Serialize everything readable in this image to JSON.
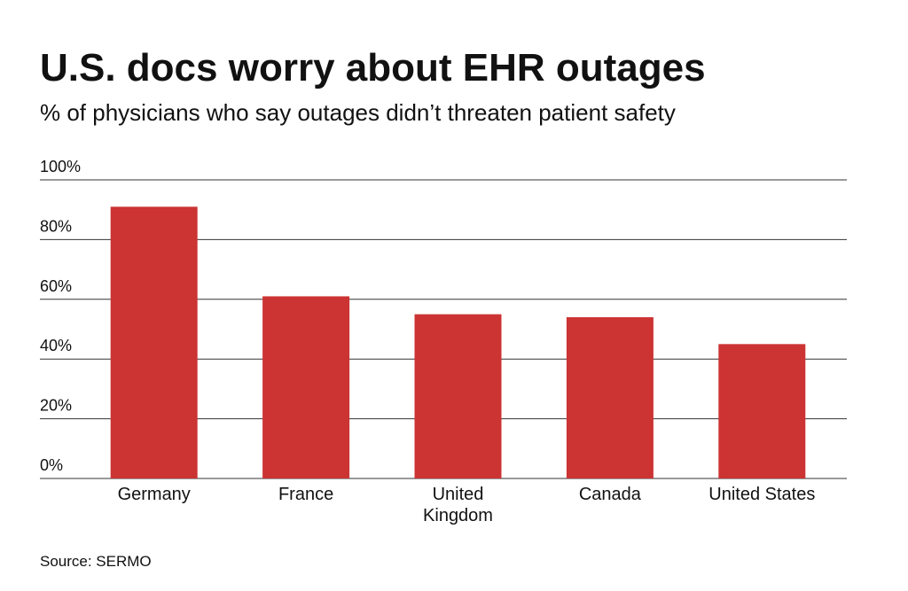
{
  "chart_data": {
    "type": "bar",
    "title": "U.S. docs worry about EHR outages",
    "subtitle": "% of physicians who say outages didn’t threaten patient safety",
    "source": "Source: SERMO",
    "categories": [
      "Germany",
      "France",
      "United\nKingdom",
      "Canada",
      "United States"
    ],
    "values": [
      91,
      61,
      55,
      54,
      45
    ],
    "color": "#cc3333",
    "ylim": [
      0,
      100
    ],
    "yticks": [
      {
        "value": 0,
        "label": "0%"
      },
      {
        "value": 20,
        "label": "20%"
      },
      {
        "value": 40,
        "label": "40%"
      },
      {
        "value": 60,
        "label": "60%"
      },
      {
        "value": 80,
        "label": "80%"
      },
      {
        "value": 100,
        "label": "100%"
      }
    ],
    "grid": true
  }
}
